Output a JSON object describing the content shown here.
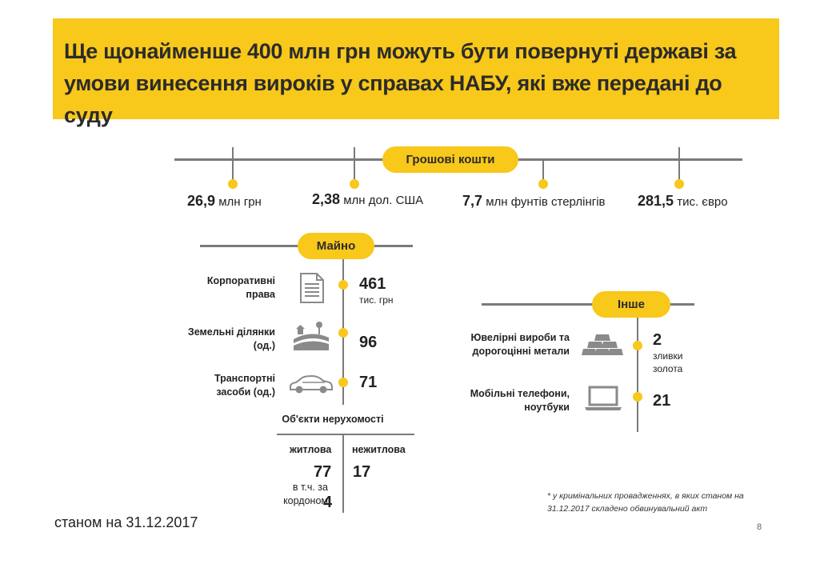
{
  "header": {
    "title": "Ще щонайменше 400 млн грн можуть бути повернуті державі за умови винесення вироків у справах НАБУ, які вже передані до суду"
  },
  "money": {
    "pill": "Грошові кошти",
    "items": [
      {
        "value": "26,9",
        "unit": "млн грн"
      },
      {
        "value": "2,38",
        "unit": "млн дол. США"
      },
      {
        "value": "7,7",
        "unit": "млн фунтів стерлінгів"
      },
      {
        "value": "281,5",
        "unit": "тис. євро"
      }
    ]
  },
  "property": {
    "pill": "Майно",
    "items": [
      {
        "label": "Корпоративні права",
        "icon": "document-icon",
        "value": "461",
        "unit": "тис. грн"
      },
      {
        "label": "Земельні ділянки (од.)",
        "icon": "land-icon",
        "value": "96"
      },
      {
        "label": "Транспортні засоби (од.)",
        "icon": "car-icon",
        "value": "71"
      }
    ],
    "realty": {
      "title": "Об'єкти нерухомості",
      "residential_label": "житлова",
      "residential_value": "77",
      "abroad_label": "в т.ч. за кордоном",
      "abroad_value": "4",
      "nonresidential_label": "нежитлова",
      "nonresidential_value": "17"
    }
  },
  "other": {
    "pill": "Інше",
    "items": [
      {
        "label": "Ювелірні вироби та дорогоцінні метали",
        "icon": "gold-bars-icon",
        "value": "2",
        "unit": "зливки золота"
      },
      {
        "label": "Мобільні телефони, ноутбуки",
        "icon": "laptop-icon",
        "value": "21"
      }
    ]
  },
  "footnote": "* у кримінальних провадженнях, в яких станом на 31.12.2017 складено обвинувальний акт",
  "date_note": "станом на 31.12.2017",
  "page_number": "8",
  "colors": {
    "accent": "#f8c81a",
    "line": "#7a7a7a",
    "text": "#2b2b2b"
  }
}
